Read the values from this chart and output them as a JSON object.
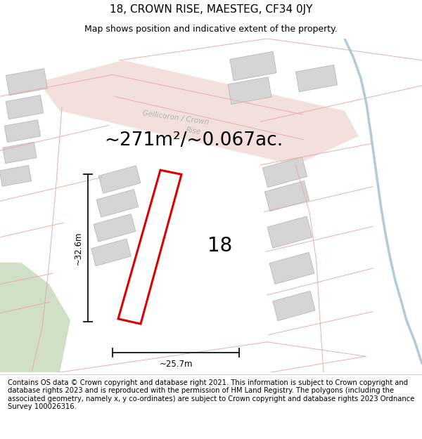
{
  "title": "18, CROWN RISE, MAESTEG, CF34 0JY",
  "subtitle": "Map shows position and indicative extent of the property.",
  "area_text": "~271m²/~0.067ac.",
  "number_label": "18",
  "dim_width": "~25.7m",
  "dim_height": "~32.6m",
  "footer_text": "Contains OS data © Crown copyright and database right 2021. This information is subject to Crown copyright and database rights 2023 and is reproduced with the permission of HM Land Registry. The polygons (including the associated geometry, namely x, y co-ordinates) are subject to Crown copyright and database rights 2023 Ordnance Survey 100026316.",
  "map_bg": "#f7f7f4",
  "road_fill": "#f2dbd8",
  "road_line": "#e8aaaa",
  "building_fill": "#d5d5d5",
  "building_edge": "#b8b8b8",
  "plot_color": "#dd0000",
  "dim_color": "#111111",
  "green_fill": "#d0dfc8",
  "water_color": "#b0ccd8",
  "road_label_color": "#b0b0b0",
  "title_fontsize": 11,
  "subtitle_fontsize": 9,
  "area_fontsize": 19,
  "number_fontsize": 20,
  "footer_fontsize": 7.2,
  "dim_fontsize": 8.5
}
